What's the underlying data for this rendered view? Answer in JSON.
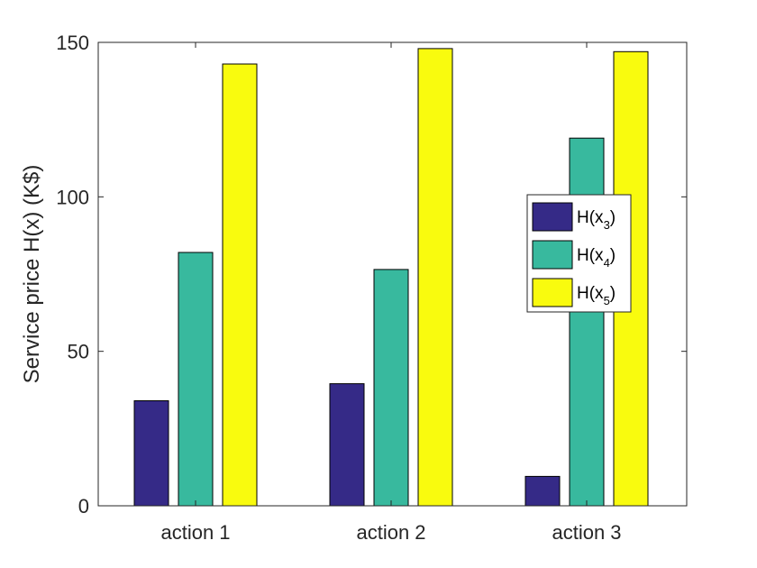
{
  "chart_data": {
    "type": "bar",
    "categories": [
      "action 1",
      "action 2",
      "action 3"
    ],
    "series": [
      {
        "name": "H(x3)",
        "label_base": "H(x",
        "label_sub": "3",
        "label_end": ")",
        "color": "#352a87",
        "values": [
          34,
          39.5,
          9.5
        ]
      },
      {
        "name": "H(x4)",
        "label_base": "H(x",
        "label_sub": "4",
        "label_end": ")",
        "color": "#38b99e",
        "values": [
          82,
          76.5,
          119
        ]
      },
      {
        "name": "H(x5)",
        "label_base": "H(x",
        "label_sub": "5",
        "label_end": ")",
        "color": "#f9fb0e",
        "values": [
          143,
          148,
          147
        ]
      }
    ],
    "ylabel": "Service price H(x) (K$)",
    "xlabel": "",
    "ylim": [
      0,
      150
    ],
    "yticks": [
      0,
      50,
      100,
      150
    ],
    "grid": false,
    "legend_position": "right"
  }
}
